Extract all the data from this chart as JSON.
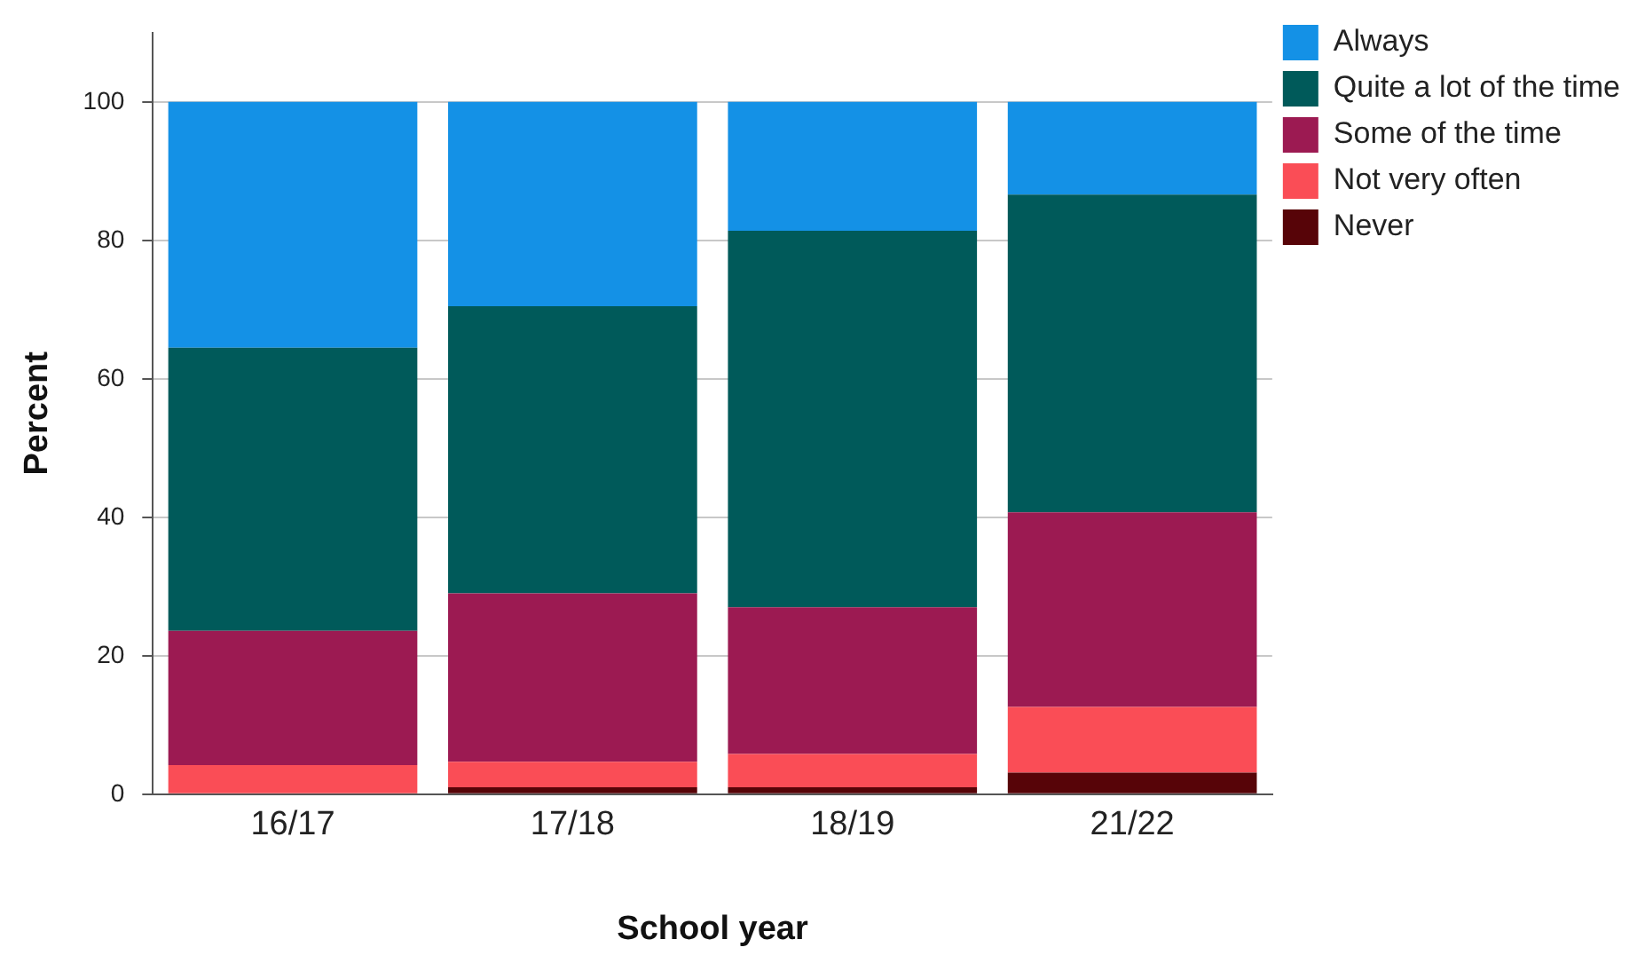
{
  "chart_data": {
    "type": "bar",
    "stacked": true,
    "xlabel": "School year",
    "ylabel": "Percent",
    "categories": [
      "16/17",
      "17/18",
      "18/19",
      "21/22"
    ],
    "series": [
      {
        "name": "Never",
        "color": "#570408",
        "values": [
          0,
          1.0,
          1.0,
          3.1
        ]
      },
      {
        "name": "Not very often",
        "color": "#fa4d56",
        "values": [
          4.2,
          3.7,
          4.8,
          9.5
        ]
      },
      {
        "name": "Some of the time",
        "color": "#9c1a52",
        "values": [
          19.4,
          24.3,
          21.2,
          28.1
        ]
      },
      {
        "name": "Quite a lot of the time",
        "color": "#005a5a",
        "values": [
          40.9,
          41.5,
          54.4,
          45.9
        ]
      },
      {
        "name": "Always",
        "color": "#1491e6",
        "values": [
          35.5,
          29.5,
          18.6,
          13.4
        ]
      }
    ],
    "ylim": [
      0,
      110
    ],
    "yticks": [
      0,
      20,
      40,
      60,
      80,
      100
    ],
    "grid": "y",
    "legend": "right"
  }
}
